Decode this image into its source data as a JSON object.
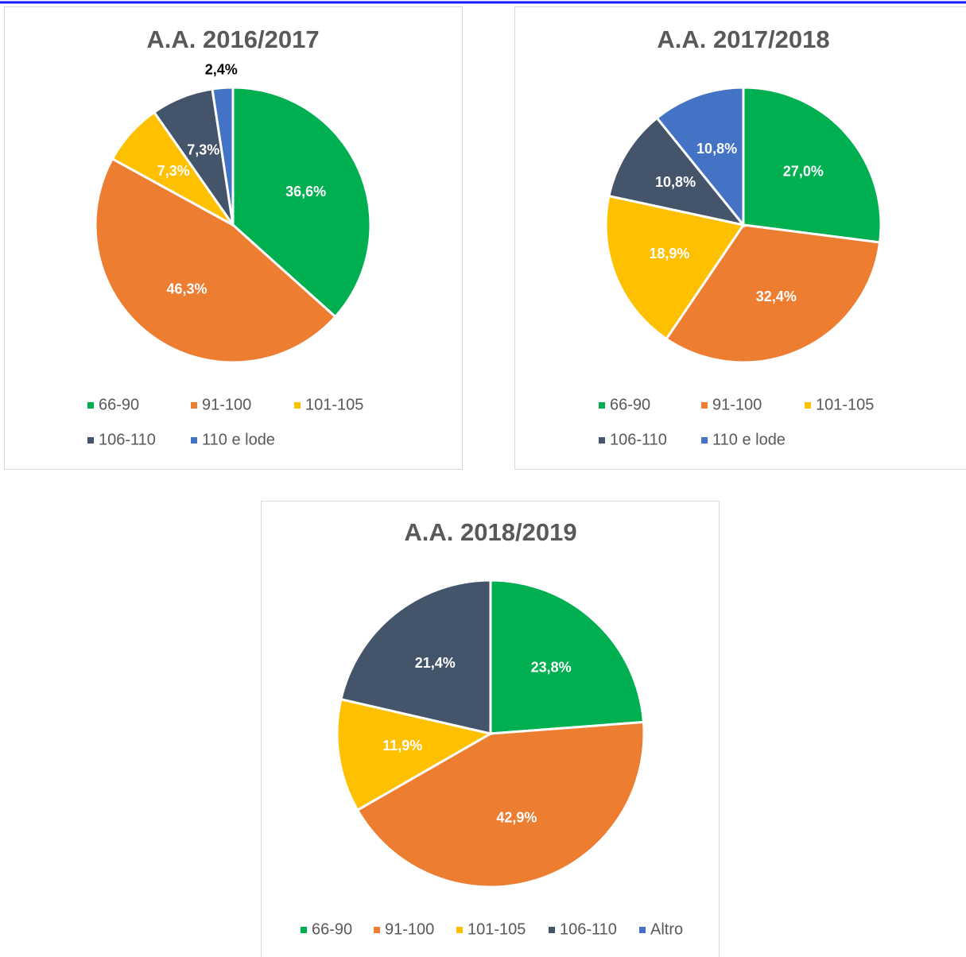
{
  "chart_data": [
    {
      "type": "pie",
      "title": "A.A. 2016/2017",
      "categories": [
        "66-90",
        "91-100",
        "101-105",
        "106-110",
        "110 e lode"
      ],
      "values": [
        36.6,
        46.3,
        7.3,
        7.3,
        2.4
      ],
      "value_labels": [
        "36,6%",
        "46,3%",
        "7,3%",
        "7,3%",
        "2,4%"
      ],
      "colors": [
        "#00b050",
        "#ed7d31",
        "#ffc000",
        "#44546a",
        "#4472c4"
      ]
    },
    {
      "type": "pie",
      "title": "A.A. 2017/2018",
      "categories": [
        "66-90",
        "91-100",
        "101-105",
        "106-110",
        "110 e lode"
      ],
      "values": [
        27.0,
        32.4,
        18.9,
        10.8,
        10.8
      ],
      "value_labels": [
        "27,0%",
        "32,4%",
        "18,9%",
        "10,8%",
        "10,8%"
      ],
      "colors": [
        "#00b050",
        "#ed7d31",
        "#ffc000",
        "#44546a",
        "#4472c4"
      ]
    },
    {
      "type": "pie",
      "title": "A.A. 2018/2019",
      "categories": [
        "66-90",
        "91-100",
        "101-105",
        "106-110",
        "Altro"
      ],
      "values": [
        23.8,
        42.9,
        11.9,
        21.4,
        0
      ],
      "value_labels": [
        "23,8%",
        "42,9%",
        "11,9%",
        "21,4%",
        null
      ],
      "colors": [
        "#00b050",
        "#ed7d31",
        "#ffc000",
        "#44546a",
        "#4472c4"
      ]
    }
  ]
}
